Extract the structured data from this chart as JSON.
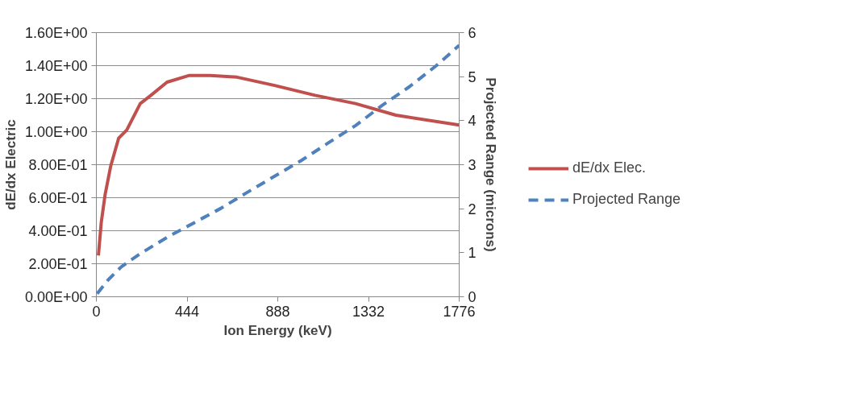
{
  "chart_data": {
    "type": "line",
    "xlabel": "Ion Energy (keV)",
    "ylabel": "dE/dx Electric",
    "y2label": "Projected Range (microns)",
    "xlim": [
      0,
      1776
    ],
    "xticks": [
      0,
      444,
      888,
      1332,
      1776
    ],
    "ylim": [
      0,
      1.6
    ],
    "yticks": [
      {
        "value": 0,
        "label": "0.00E+00"
      },
      {
        "value": 0.2,
        "label": "2.00E-01"
      },
      {
        "value": 0.4,
        "label": "4.00E-01"
      },
      {
        "value": 0.6,
        "label": "6.00E-01"
      },
      {
        "value": 0.8,
        "label": "8.00E-01"
      },
      {
        "value": 1.0,
        "label": "1.00E+00"
      },
      {
        "value": 1.2,
        "label": "1.20E+00"
      },
      {
        "value": 1.4,
        "label": "1.40E+00"
      },
      {
        "value": 1.6,
        "label": "1.60E+00"
      }
    ],
    "y2lim": [
      0,
      6
    ],
    "y2ticks": [
      0,
      1,
      2,
      3,
      4,
      5,
      6
    ],
    "grid": "y",
    "legend": "right",
    "series": [
      {
        "name": "dE/dx Elec.",
        "color": "#c0504d",
        "line_style": "solid",
        "x": [
          10,
          24,
          43,
          70,
          109,
          149,
          215,
          267,
          346,
          452,
          557,
          689,
          873,
          1071,
          1269,
          1466,
          1776
        ],
        "values": [
          0.25,
          0.45,
          0.62,
          0.79,
          0.96,
          1.01,
          1.17,
          1.22,
          1.3,
          1.34,
          1.34,
          1.33,
          1.28,
          1.22,
          1.17,
          1.1,
          1.04
        ]
      },
      {
        "name": "Projected Range",
        "color": "#4f81bd",
        "line_style": "dashed",
        "axis": "y2",
        "x": [
          4,
          57,
          122,
          215,
          346,
          478,
          610,
          742,
          873,
          1005,
          1137,
          1269,
          1400,
          1532,
          1664,
          1776
        ],
        "values": [
          0.07,
          0.38,
          0.68,
          0.98,
          1.35,
          1.68,
          2.01,
          2.38,
          2.74,
          3.1,
          3.5,
          3.89,
          4.35,
          4.77,
          5.25,
          5.71
        ]
      }
    ]
  }
}
